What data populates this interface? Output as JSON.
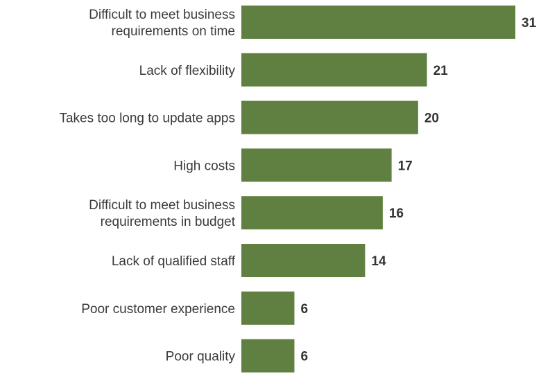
{
  "chart_data": {
    "type": "bar",
    "orientation": "horizontal",
    "categories": [
      "Difficult to meet business requirements on time",
      "Lack of flexibility",
      "Takes too long to update apps",
      "High costs",
      "Difficult to meet business requirements in budget",
      "Lack of qualified staff",
      "Poor customer experience",
      "Poor quality"
    ],
    "category_lines": [
      [
        "Difficult to meet business",
        "requirements on time"
      ],
      [
        "Lack of flexibility"
      ],
      [
        "Takes too long to update apps"
      ],
      [
        "High costs"
      ],
      [
        "Difficult to meet business",
        "requirements in budget"
      ],
      [
        "Lack of qualified staff"
      ],
      [
        "Poor customer experience"
      ],
      [
        "Poor quality"
      ]
    ],
    "values": [
      31,
      21,
      20,
      17,
      16,
      14,
      6,
      6
    ],
    "title": "",
    "xlabel": "",
    "ylabel": "",
    "xlim": [
      0,
      31
    ],
    "grid": false,
    "legend": "none",
    "data_labels": true,
    "bar_color": "#5f8041"
  }
}
